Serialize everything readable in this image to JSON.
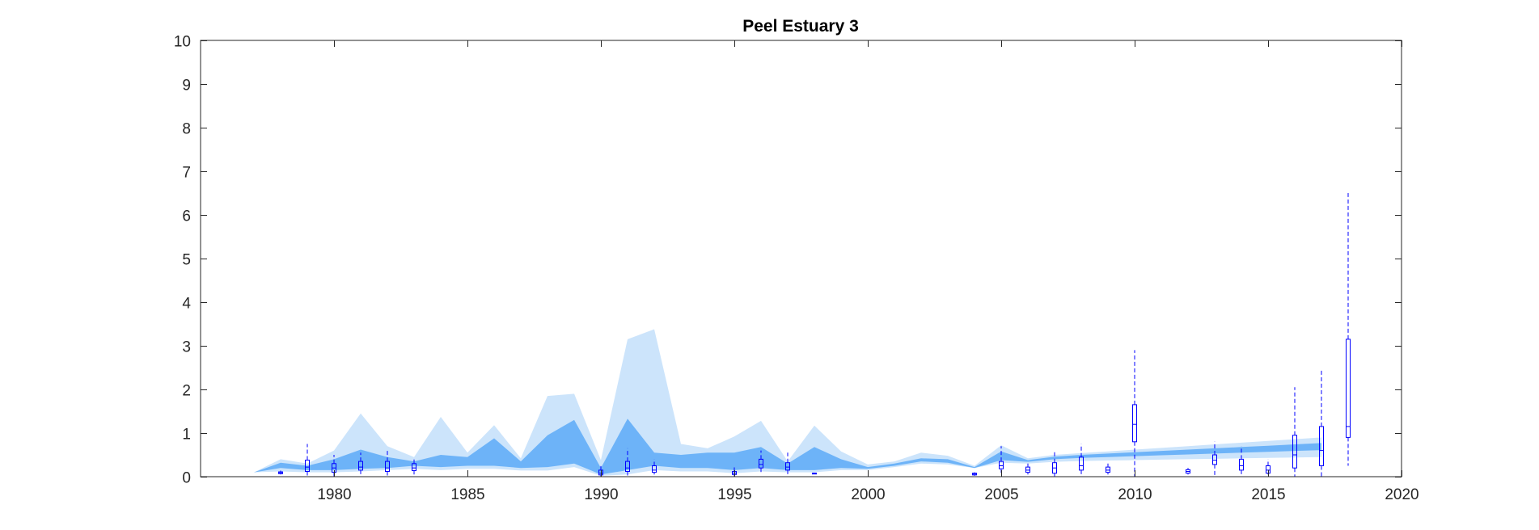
{
  "chart_data": {
    "type": "area",
    "title": "Peel Estuary 3",
    "xlabel": "",
    "ylabel": "",
    "xlim": [
      1975,
      2020
    ],
    "ylim": [
      0,
      10
    ],
    "x_ticks": [
      1980,
      1985,
      1990,
      1995,
      2000,
      2005,
      2010,
      2015,
      2020
    ],
    "y_ticks": [
      0,
      1,
      2,
      3,
      4,
      5,
      6,
      7,
      8,
      9,
      10
    ],
    "grid": false,
    "legend": "none",
    "colors": {
      "outer_band": "#cce4fb",
      "inner_band": "#6db3f8",
      "boxplot": "#0000ff",
      "axis": "#262626"
    },
    "outer_band": {
      "x": [
        1977,
        1978,
        1979,
        1980,
        1981,
        1982,
        1983,
        1984,
        1985,
        1986,
        1987,
        1988,
        1989,
        1990,
        1991,
        1992,
        1993,
        1994,
        1995,
        1996,
        1997,
        1998,
        1999,
        2000,
        2001,
        2002,
        2003,
        2004,
        2005,
        2006,
        2007,
        2008,
        2009,
        2010,
        2011,
        2012,
        2013,
        2014,
        2015,
        2016,
        2017
      ],
      "upper": [
        0.1,
        0.4,
        0.3,
        0.6,
        1.45,
        0.7,
        0.45,
        1.37,
        0.55,
        1.18,
        0.42,
        1.85,
        1.9,
        0.38,
        3.15,
        3.38,
        0.75,
        0.65,
        0.92,
        1.28,
        0.35,
        1.17,
        0.58,
        0.28,
        0.35,
        0.55,
        0.48,
        0.25,
        0.72,
        0.42,
        0.5,
        0.54,
        0.58,
        0.62,
        0.66,
        0.7,
        0.74,
        0.78,
        0.82,
        0.86,
        0.9
      ],
      "lower": [
        0.1,
        0.12,
        0.1,
        0.1,
        0.12,
        0.15,
        0.18,
        0.15,
        0.18,
        0.18,
        0.14,
        0.14,
        0.22,
        0.02,
        0.05,
        0.15,
        0.12,
        0.12,
        0.08,
        0.12,
        0.1,
        0.1,
        0.15,
        0.15,
        0.22,
        0.3,
        0.28,
        0.2,
        0.32,
        0.3,
        0.34,
        0.36,
        0.37,
        0.38,
        0.39,
        0.4,
        0.41,
        0.42,
        0.43,
        0.44,
        0.45
      ]
    },
    "inner_band": {
      "x": [
        1977,
        1978,
        1979,
        1980,
        1981,
        1982,
        1983,
        1984,
        1985,
        1986,
        1987,
        1988,
        1989,
        1990,
        1991,
        1992,
        1993,
        1994,
        1995,
        1996,
        1997,
        1998,
        1999,
        2000,
        2001,
        2002,
        2003,
        2004,
        2005,
        2006,
        2007,
        2008,
        2009,
        2010,
        2011,
        2012,
        2013,
        2014,
        2015,
        2016,
        2017
      ],
      "upper": [
        0.1,
        0.32,
        0.25,
        0.4,
        0.62,
        0.45,
        0.35,
        0.5,
        0.45,
        0.88,
        0.35,
        0.95,
        1.3,
        0.2,
        1.33,
        0.55,
        0.5,
        0.55,
        0.55,
        0.68,
        0.3,
        0.68,
        0.4,
        0.22,
        0.3,
        0.42,
        0.4,
        0.22,
        0.58,
        0.38,
        0.46,
        0.5,
        0.53,
        0.56,
        0.59,
        0.62,
        0.65,
        0.68,
        0.71,
        0.74,
        0.77
      ],
      "lower": [
        0.1,
        0.2,
        0.15,
        0.15,
        0.18,
        0.2,
        0.25,
        0.22,
        0.25,
        0.25,
        0.2,
        0.22,
        0.3,
        0.05,
        0.15,
        0.25,
        0.2,
        0.2,
        0.15,
        0.2,
        0.15,
        0.15,
        0.2,
        0.18,
        0.25,
        0.35,
        0.32,
        0.2,
        0.38,
        0.34,
        0.4,
        0.43,
        0.45,
        0.47,
        0.49,
        0.51,
        0.53,
        0.55,
        0.57,
        0.59,
        0.61
      ]
    },
    "boxplots": [
      {
        "x": 1978,
        "low": 0.05,
        "q1": 0.07,
        "median": 0.09,
        "q3": 0.11,
        "high": 0.14
      },
      {
        "x": 1979,
        "low": 0.0,
        "q1": 0.12,
        "median": 0.22,
        "q3": 0.38,
        "high": 0.75
      },
      {
        "x": 1980,
        "low": 0.0,
        "q1": 0.1,
        "median": 0.2,
        "q3": 0.3,
        "high": 0.5
      },
      {
        "x": 1981,
        "low": 0.05,
        "q1": 0.15,
        "median": 0.22,
        "q3": 0.35,
        "high": 0.55
      },
      {
        "x": 1982,
        "low": 0.0,
        "q1": 0.12,
        "median": 0.2,
        "q3": 0.35,
        "high": 0.6
      },
      {
        "x": 1983,
        "low": 0.05,
        "q1": 0.14,
        "median": 0.2,
        "q3": 0.3,
        "high": 0.42
      },
      {
        "x": 1990,
        "low": 0.0,
        "q1": 0.04,
        "median": 0.08,
        "q3": 0.15,
        "high": 0.25
      },
      {
        "x": 1991,
        "low": 0.0,
        "q1": 0.12,
        "median": 0.2,
        "q3": 0.35,
        "high": 0.65
      },
      {
        "x": 1992,
        "low": 0.05,
        "q1": 0.1,
        "median": 0.15,
        "q3": 0.25,
        "high": 0.4
      },
      {
        "x": 1995,
        "low": 0.0,
        "q1": 0.05,
        "median": 0.08,
        "q3": 0.12,
        "high": 0.25
      },
      {
        "x": 1996,
        "low": 0.1,
        "q1": 0.2,
        "median": 0.28,
        "q3": 0.4,
        "high": 0.6
      },
      {
        "x": 1997,
        "low": 0.0,
        "q1": 0.15,
        "median": 0.22,
        "q3": 0.32,
        "high": 0.55
      },
      {
        "x": 1998,
        "low": 0.08,
        "q1": 0.08,
        "median": 0.08,
        "q3": 0.08,
        "high": 0.08
      },
      {
        "x": 2004,
        "low": 0.02,
        "q1": 0.04,
        "median": 0.06,
        "q3": 0.08,
        "high": 0.1
      },
      {
        "x": 2005,
        "low": 0.05,
        "q1": 0.18,
        "median": 0.25,
        "q3": 0.35,
        "high": 0.7
      },
      {
        "x": 2006,
        "low": 0.05,
        "q1": 0.1,
        "median": 0.15,
        "q3": 0.22,
        "high": 0.3
      },
      {
        "x": 2007,
        "low": 0.0,
        "q1": 0.08,
        "median": 0.2,
        "q3": 0.32,
        "high": 0.6
      },
      {
        "x": 2008,
        "low": 0.05,
        "q1": 0.15,
        "median": 0.25,
        "q3": 0.45,
        "high": 0.75
      },
      {
        "x": 2009,
        "low": 0.05,
        "q1": 0.1,
        "median": 0.15,
        "q3": 0.22,
        "high": 0.3
      },
      {
        "x": 2010,
        "low": 0.0,
        "q1": 0.8,
        "median": 1.2,
        "q3": 1.65,
        "high": 2.9
      },
      {
        "x": 2012,
        "low": 0.05,
        "q1": 0.08,
        "median": 0.12,
        "q3": 0.16,
        "high": 0.2
      },
      {
        "x": 2013,
        "low": 0.0,
        "q1": 0.28,
        "median": 0.38,
        "q3": 0.5,
        "high": 0.8
      },
      {
        "x": 2014,
        "low": 0.05,
        "q1": 0.15,
        "median": 0.25,
        "q3": 0.4,
        "high": 0.7
      },
      {
        "x": 2015,
        "low": 0.05,
        "q1": 0.08,
        "median": 0.15,
        "q3": 0.25,
        "high": 0.4
      },
      {
        "x": 2016,
        "low": 0.0,
        "q1": 0.2,
        "median": 0.5,
        "q3": 0.95,
        "high": 2.05
      },
      {
        "x": 2017,
        "low": 0.0,
        "q1": 0.25,
        "median": 0.6,
        "q3": 1.15,
        "high": 2.45
      },
      {
        "x": 2018,
        "low": 0.25,
        "q1": 0.9,
        "median": 1.15,
        "q3": 3.15,
        "high": 6.5
      }
    ]
  }
}
